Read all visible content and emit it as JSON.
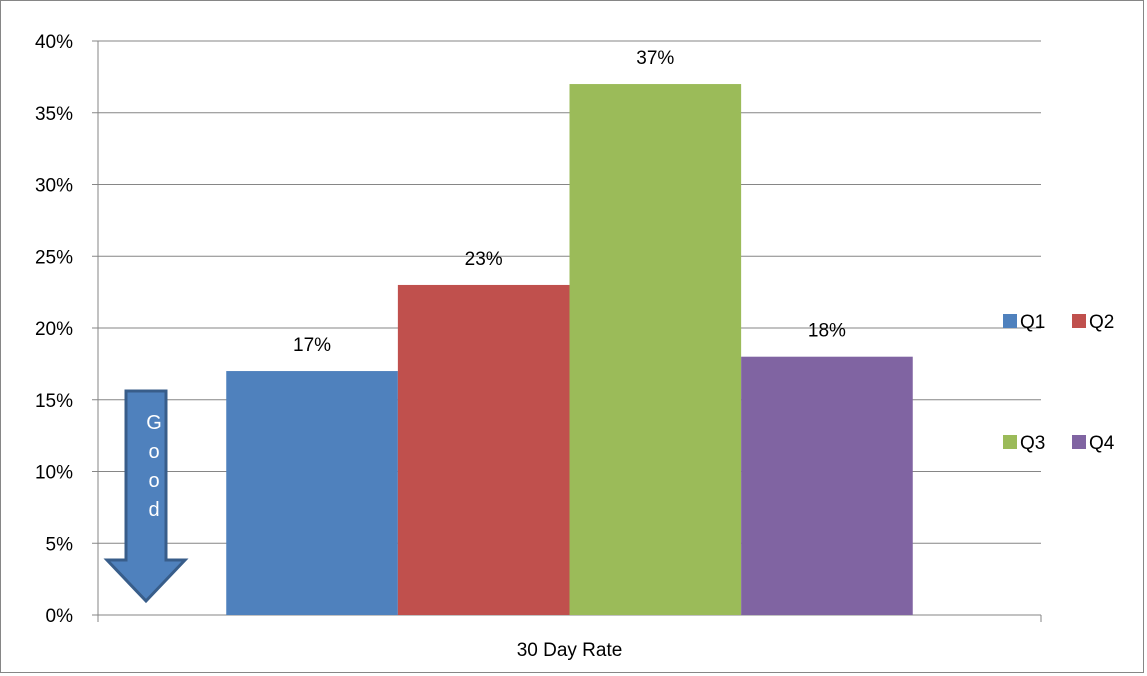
{
  "chart_data": {
    "type": "bar",
    "categories": [
      "30 Day Rate"
    ],
    "series": [
      {
        "name": "Q1",
        "values": [
          17
        ],
        "color": "#4F81BD"
      },
      {
        "name": "Q2",
        "values": [
          23
        ],
        "color": "#C0504D"
      },
      {
        "name": "Q3",
        "values": [
          37
        ],
        "color": "#9BBB59"
      },
      {
        "name": "Q4",
        "values": [
          18
        ],
        "color": "#8064A2"
      }
    ],
    "data_labels": [
      "17%",
      "23%",
      "37%",
      "18%"
    ],
    "title": "",
    "xlabel": "",
    "ylabel": "",
    "ylim": [
      0,
      40
    ],
    "y_ticks": [
      0,
      5,
      10,
      15,
      20,
      25,
      30,
      35,
      40
    ],
    "y_tick_labels": [
      "0%",
      "5%",
      "10%",
      "15%",
      "20%",
      "25%",
      "30%",
      "35%",
      "40%"
    ],
    "grid": true,
    "legend_position": "right",
    "annotation": {
      "text": "Good",
      "letters": [
        "G",
        "o",
        "o",
        "d"
      ],
      "shape": "down-arrow",
      "color": "#4F81BD"
    }
  }
}
